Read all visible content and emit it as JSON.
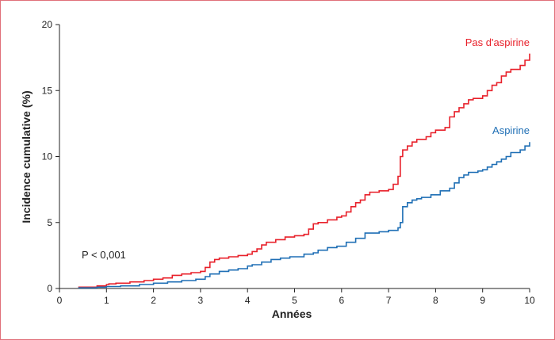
{
  "chart_data": {
    "type": "line",
    "step": true,
    "xlabel": "Années",
    "ylabel": "Incidence cumulative (%)",
    "xlim": [
      0,
      10
    ],
    "ylim": [
      0,
      20
    ],
    "xticks": [
      "0",
      "1",
      "2",
      "3",
      "4",
      "5",
      "6",
      "7",
      "8",
      "9",
      "10"
    ],
    "yticks": [
      "0",
      "5",
      "10",
      "15",
      "20"
    ],
    "grid": false,
    "annotation": "P < 0,001",
    "series": [
      {
        "name": "Pas d'aspirine",
        "color": "#e8202a",
        "x": [
          0.4,
          0.6,
          0.8,
          1.0,
          1.05,
          1.2,
          1.5,
          1.8,
          2.0,
          2.2,
          2.4,
          2.6,
          2.8,
          3.0,
          3.1,
          3.2,
          3.3,
          3.4,
          3.6,
          3.8,
          4.0,
          4.1,
          4.2,
          4.3,
          4.4,
          4.6,
          4.8,
          5.0,
          5.2,
          5.3,
          5.4,
          5.5,
          5.7,
          5.9,
          6.0,
          6.1,
          6.2,
          6.3,
          6.4,
          6.5,
          6.6,
          6.8,
          7.0,
          7.1,
          7.2,
          7.25,
          7.3,
          7.4,
          7.5,
          7.6,
          7.8,
          7.9,
          8.0,
          8.2,
          8.3,
          8.4,
          8.5,
          8.6,
          8.7,
          8.8,
          9.0,
          9.1,
          9.2,
          9.3,
          9.4,
          9.5,
          9.6,
          9.8,
          9.9,
          10.0
        ],
        "values": [
          0.1,
          0.1,
          0.2,
          0.3,
          0.35,
          0.4,
          0.5,
          0.6,
          0.7,
          0.8,
          1.0,
          1.1,
          1.2,
          1.3,
          1.6,
          2.0,
          2.2,
          2.3,
          2.4,
          2.5,
          2.6,
          2.8,
          3.0,
          3.3,
          3.5,
          3.7,
          3.9,
          4.0,
          4.1,
          4.5,
          4.9,
          5.0,
          5.2,
          5.4,
          5.5,
          5.8,
          6.2,
          6.5,
          6.7,
          7.1,
          7.3,
          7.4,
          7.5,
          7.9,
          8.5,
          10.0,
          10.5,
          10.8,
          11.1,
          11.3,
          11.5,
          11.8,
          12.0,
          12.2,
          13.0,
          13.4,
          13.7,
          14.0,
          14.3,
          14.4,
          14.6,
          15.0,
          15.4,
          15.6,
          16.1,
          16.4,
          16.6,
          16.9,
          17.3,
          17.8
        ]
      },
      {
        "name": "Aspirine",
        "color": "#1f6fb5",
        "x": [
          0.4,
          0.8,
          1.0,
          1.3,
          1.7,
          2.0,
          2.3,
          2.6,
          2.9,
          3.1,
          3.2,
          3.4,
          3.6,
          3.8,
          4.0,
          4.1,
          4.3,
          4.5,
          4.7,
          4.9,
          5.2,
          5.4,
          5.5,
          5.7,
          5.9,
          6.1,
          6.3,
          6.5,
          6.8,
          7.0,
          7.2,
          7.25,
          7.3,
          7.4,
          7.5,
          7.6,
          7.7,
          7.9,
          8.1,
          8.3,
          8.4,
          8.5,
          8.6,
          8.7,
          8.9,
          9.0,
          9.1,
          9.2,
          9.3,
          9.4,
          9.5,
          9.6,
          9.8,
          9.9,
          10.0
        ],
        "values": [
          0.05,
          0.1,
          0.15,
          0.2,
          0.3,
          0.4,
          0.5,
          0.6,
          0.7,
          0.9,
          1.1,
          1.3,
          1.4,
          1.5,
          1.7,
          1.8,
          2.0,
          2.2,
          2.3,
          2.4,
          2.6,
          2.7,
          2.9,
          3.1,
          3.2,
          3.5,
          3.8,
          4.2,
          4.3,
          4.4,
          4.6,
          5.0,
          6.2,
          6.5,
          6.7,
          6.8,
          6.9,
          7.1,
          7.4,
          7.6,
          8.0,
          8.4,
          8.6,
          8.8,
          8.9,
          9.0,
          9.2,
          9.4,
          9.6,
          9.8,
          10.0,
          10.3,
          10.5,
          10.8,
          11.1
        ]
      }
    ]
  }
}
